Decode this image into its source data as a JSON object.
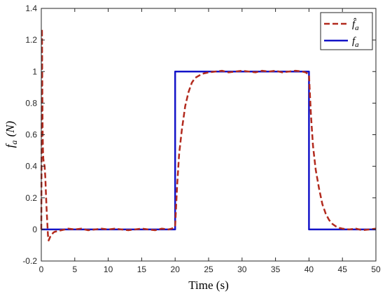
{
  "chart_data": {
    "type": "line",
    "xlabel": "Time (s)",
    "ylabel_main": "f",
    "ylabel_sub": "a",
    "ylabel_unit": "(N)",
    "xlim": [
      0,
      50
    ],
    "ylim": [
      -0.2,
      1.4
    ],
    "xticks": [
      0,
      5,
      10,
      15,
      20,
      25,
      30,
      35,
      40,
      45,
      50
    ],
    "yticks": [
      -0.2,
      0,
      0.2,
      0.4,
      0.6,
      0.8,
      1,
      1.2,
      1.4
    ],
    "xtick_labels": [
      "0",
      "5",
      "10",
      "15",
      "20",
      "25",
      "30",
      "35",
      "40",
      "45",
      "50"
    ],
    "ytick_labels": [
      "-0.2",
      "0",
      "0.2",
      "0.4",
      "0.6",
      "0.8",
      "1",
      "1.2",
      "1.4"
    ],
    "grid": false,
    "legend_position": "top-right",
    "series": [
      {
        "name": "f̂a",
        "legend_main": "f̂",
        "legend_sub": "a",
        "color": "#b22a1e",
        "style": "dashed",
        "x": [
          0,
          0.05,
          0.1,
          0.15,
          0.2,
          0.25,
          0.3,
          0.35,
          0.4,
          0.5,
          0.6,
          0.7,
          0.8,
          0.9,
          1.0,
          1.1,
          1.2,
          1.4,
          1.6,
          1.8,
          2.0,
          2.5,
          3.0,
          3.5,
          4.0,
          5,
          6,
          7,
          8,
          9,
          10,
          11,
          12,
          13,
          14,
          15,
          16,
          17,
          18,
          19,
          19.5,
          20,
          20.3,
          20.6,
          21,
          21.5,
          22,
          22.5,
          23,
          24,
          25,
          26,
          27,
          28,
          29,
          30,
          31,
          32,
          33,
          34,
          35,
          36,
          37,
          38,
          39,
          39.5,
          40,
          40.3,
          40.6,
          41,
          41.5,
          42,
          42.5,
          43,
          43.5,
          44,
          44.5,
          45,
          46,
          47,
          48,
          49,
          50
        ],
        "y": [
          0,
          0.6,
          1.27,
          0.9,
          0.62,
          0.5,
          0.45,
          0.43,
          0.42,
          0.4,
          0.33,
          0.22,
          0.12,
          0.04,
          -0.04,
          -0.07,
          -0.06,
          -0.04,
          -0.03,
          -0.02,
          -0.015,
          -0.01,
          -0.005,
          0,
          0.005,
          0,
          0.005,
          -0.005,
          0,
          0.005,
          0,
          0.005,
          0,
          -0.005,
          0,
          0.005,
          0,
          -0.005,
          0.005,
          0,
          0.005,
          0.02,
          0.28,
          0.48,
          0.63,
          0.78,
          0.87,
          0.93,
          0.96,
          0.985,
          0.995,
          1.0,
          1.005,
          0.995,
          1.0,
          1.005,
          1.0,
          0.995,
          1.005,
          1.0,
          1.005,
          0.995,
          1.0,
          1.005,
          1.0,
          0.995,
          0.98,
          0.72,
          0.53,
          0.38,
          0.26,
          0.16,
          0.1,
          0.06,
          0.035,
          0.02,
          0.01,
          0.005,
          0,
          0.005,
          -0.005,
          0,
          0.005
        ]
      },
      {
        "name": "fa",
        "legend_main": "f",
        "legend_sub": "a",
        "color": "#1414c8",
        "style": "solid",
        "x": [
          0,
          20,
          20,
          40,
          40,
          50
        ],
        "y": [
          0,
          0,
          1,
          1,
          0,
          0
        ]
      }
    ]
  }
}
